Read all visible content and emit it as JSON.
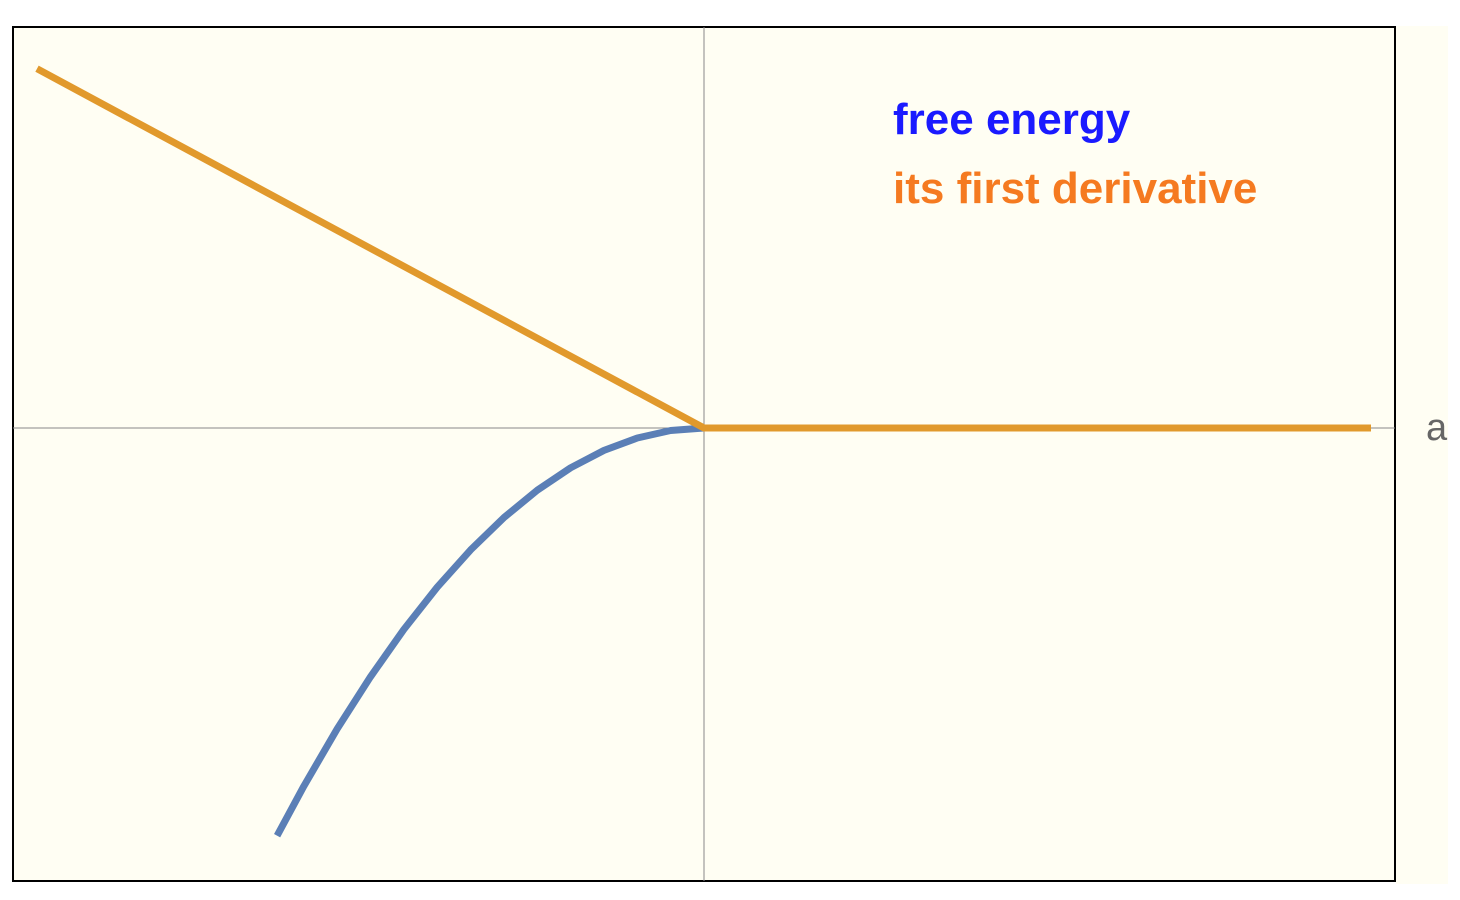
{
  "chart_data": {
    "type": "line",
    "title": "",
    "xlabel": "a",
    "ylabel": "",
    "xlim": [
      -1,
      1
    ],
    "ylim": [
      -0.65,
      0.57
    ],
    "grid": false,
    "legend": {
      "placement": "top-right",
      "entries": [
        {
          "label": "free energy",
          "color": "#1a1aff"
        },
        {
          "label": "its first derivative",
          "color": "#f57a20"
        }
      ]
    },
    "series": [
      {
        "name": "free energy",
        "color": "#5b7fb6",
        "x": [
          -0.64,
          -0.6,
          -0.55,
          -0.5,
          -0.45,
          -0.4,
          -0.35,
          -0.3,
          -0.25,
          -0.2,
          -0.15,
          -0.1,
          -0.05,
          0,
          0.1,
          0.2,
          0.3,
          0.4,
          0.5,
          0.6,
          0.7,
          0.8,
          0.9,
          1.0
        ],
        "y": [
          -0.59,
          -0.5184,
          -0.4356,
          -0.36,
          -0.2916,
          -0.2304,
          -0.1764,
          -0.1296,
          -0.09,
          -0.0576,
          -0.0324,
          -0.0144,
          -0.0036,
          0,
          0,
          0,
          0,
          0,
          0,
          0,
          0,
          0,
          0,
          0
        ]
      },
      {
        "name": "its first derivative",
        "color": "#e1992c",
        "x": [
          -1,
          0,
          1
        ],
        "y": [
          0.52,
          0,
          0
        ]
      }
    ]
  },
  "colors": {
    "plot_background": "#fffef3",
    "outer_strip": "#fffef3",
    "frame": "#000000",
    "axis": "#888888"
  }
}
